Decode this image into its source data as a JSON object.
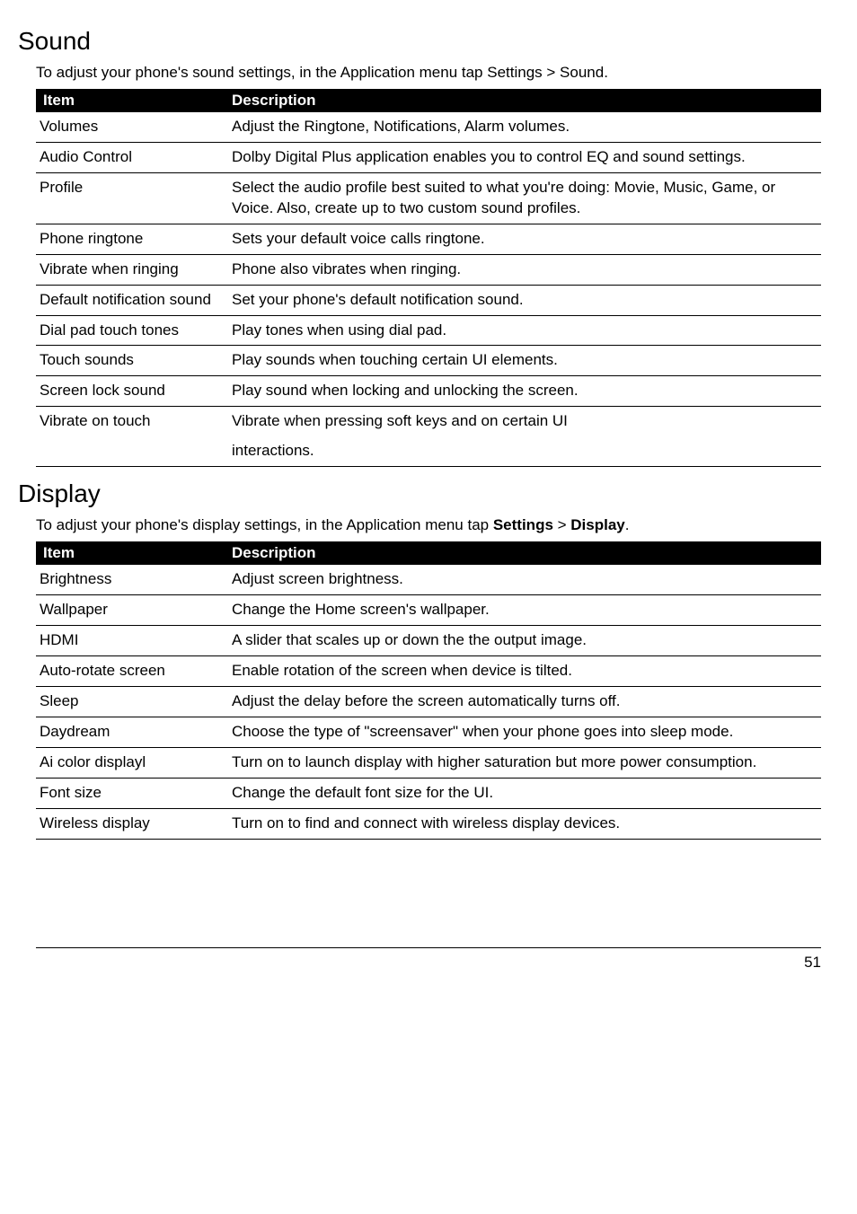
{
  "page_number": "51",
  "colors": {
    "header_bg": "#000000",
    "header_text": "#ffffff",
    "body_text": "#000000",
    "page_bg": "#ffffff",
    "border": "#000000"
  },
  "typography": {
    "section_title_size": 28,
    "body_size": 17,
    "section_title_weight": "normal",
    "header_weight": "bold"
  },
  "sections": [
    {
      "title": "Sound",
      "intro": "To adjust your phone's sound settings, in the Application menu tap Settings > Sound.",
      "columns": [
        "Item",
        "Description"
      ],
      "rows": [
        [
          "Volumes",
          "Adjust the Ringtone, Notifications, Alarm volumes."
        ],
        [
          "Audio Control",
          "Dolby Digital Plus application enables you to control EQ and sound settings."
        ],
        [
          "Profile",
          "Select the audio profile best suited to what you're doing: Movie, Music, Game, or Voice. Also, create up to two custom sound profiles."
        ],
        [
          "Phone ringtone",
          "Sets your default voice calls ringtone."
        ],
        [
          "Vibrate when ringing",
          "Phone also vibrates when ringing."
        ],
        [
          "Default notification sound",
          "Set your phone's default notification sound."
        ],
        [
          "Dial pad touch tones",
          "Play tones when using dial pad."
        ],
        [
          "Touch sounds",
          "Play sounds when touching certain UI elements."
        ],
        [
          "Screen lock sound",
          "Play sound when locking and unlocking the screen."
        ],
        [
          "Vibrate on touch",
          "Vibrate when pressing soft keys and on certain UI"
        ],
        [
          "",
          "interactions."
        ]
      ]
    },
    {
      "title": "Display",
      "intro_parts": [
        "To adjust your phone's display settings, in the Application menu tap ",
        "Settings",
        " > ",
        "Display",
        "."
      ],
      "columns": [
        "Item",
        "Description"
      ],
      "rows": [
        [
          "Brightness",
          "Adjust screen brightness."
        ],
        [
          "Wallpaper",
          "Change the Home screen's wallpaper."
        ],
        [
          "HDMI",
          "A slider that scales up or down the the output image."
        ],
        [
          "Auto-rotate screen",
          "Enable rotation of the screen when device is tilted."
        ],
        [
          "Sleep",
          "Adjust the delay before the screen automatically turns off."
        ],
        [
          "Daydream",
          "Choose the type of \"screensaver\" when your phone goes into sleep mode."
        ],
        [
          "Ai color displayl",
          "Turn on to launch display with higher saturation but more power consumption."
        ],
        [
          "Font size",
          "Change the default font size for the UI."
        ],
        [
          "Wireless display",
          "Turn on to find and connect with wireless display devices."
        ]
      ]
    }
  ]
}
